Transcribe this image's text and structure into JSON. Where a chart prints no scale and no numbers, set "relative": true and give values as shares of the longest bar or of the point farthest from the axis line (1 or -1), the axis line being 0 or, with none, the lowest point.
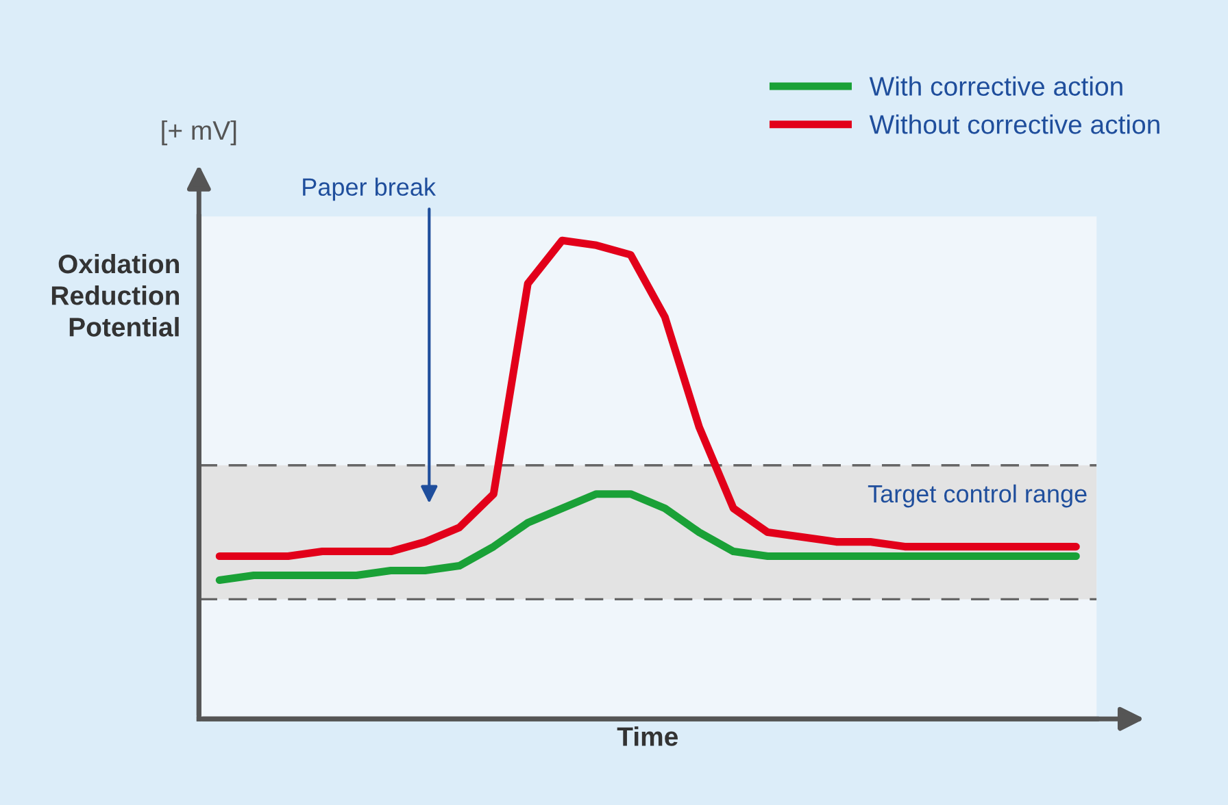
{
  "chart_data": {
    "type": "line",
    "relative": true,
    "xlabel": "Time",
    "ylabel": "Oxidation\nReduction\nPotential",
    "categories": [
      null,
      null,
      null,
      null,
      null,
      null,
      null,
      null,
      null,
      null,
      null,
      null,
      null,
      null,
      null,
      null,
      null,
      null,
      null,
      null,
      null,
      null,
      null,
      null,
      null,
      null
    ],
    "series": [
      {
        "name": "With corrective action",
        "color": "#1aa137",
        "values": [
          0.29,
          0.3,
          0.3,
          0.3,
          0.3,
          0.31,
          0.31,
          0.32,
          0.36,
          0.41,
          0.44,
          0.47,
          0.47,
          0.44,
          0.39,
          0.35,
          0.34,
          0.34,
          0.34,
          0.34,
          0.34,
          0.34,
          0.34,
          0.34,
          0.34,
          0.34
        ]
      },
      {
        "name": "Without corrective action",
        "color": "#e2001a",
        "values": [
          0.34,
          0.34,
          0.34,
          0.35,
          0.35,
          0.35,
          0.37,
          0.4,
          0.47,
          0.91,
          1.0,
          0.99,
          0.97,
          0.84,
          0.61,
          0.44,
          0.39,
          0.38,
          0.37,
          0.37,
          0.36,
          0.36,
          0.36,
          0.36,
          0.36,
          0.36
        ]
      }
    ],
    "bands": [
      {
        "axis": "y",
        "from": 0.25,
        "to": 0.53,
        "label": "Target control range",
        "color": "#e3e3e3"
      }
    ],
    "ref_lines": [
      {
        "axis": "y",
        "value": 0.25,
        "color": "#666666",
        "line_style": "dashed"
      },
      {
        "axis": "y",
        "value": 0.53,
        "color": "#666666",
        "line_style": "dashed"
      }
    ],
    "annotations": [
      "[+ mV]",
      "Paper break"
    ],
    "legend": "top right",
    "grid": false,
    "marker": "none",
    "line_style": "solid",
    "tick_labels": false
  }
}
